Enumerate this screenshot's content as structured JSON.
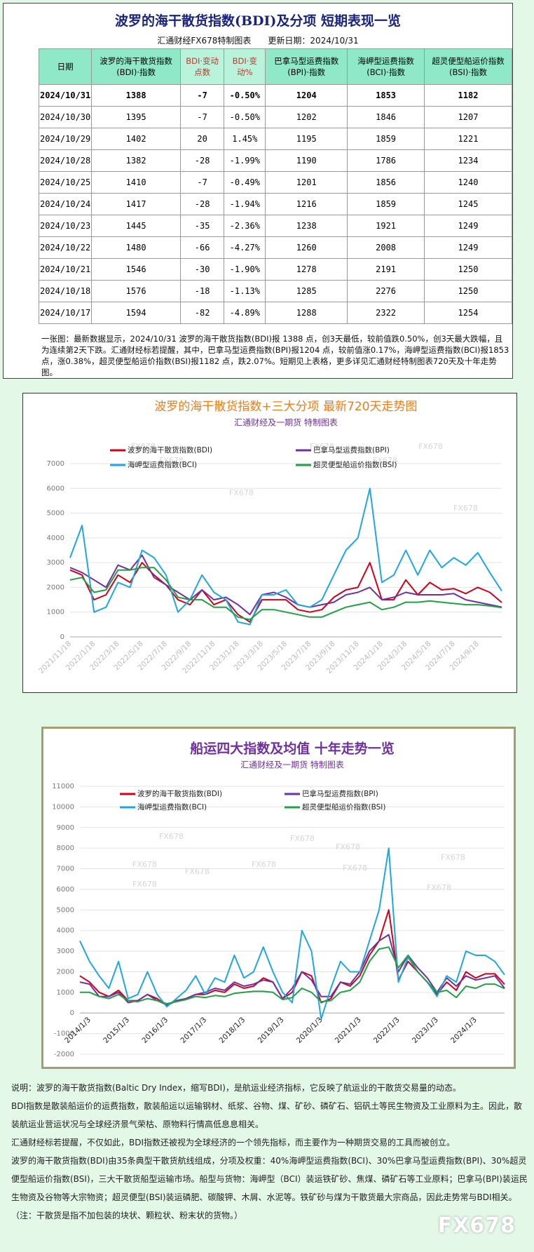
{
  "header": {
    "title": "波罗的海干散货指数(BDI)及分项  短期表现一览",
    "source": "汇通财经FX678特制图表",
    "updated": "更新日期：2024/10/31"
  },
  "table": {
    "columns": [
      "日期",
      "波罗的海干散货指数(BDI)·指数",
      "BDI·变动点数",
      "BDI·变动%",
      "巴拿马型运费指数(BPI)·指数",
      "海岬型运费指数(BCI)·指数",
      "超灵便型船运价指数(BSI)·指数"
    ],
    "rows": [
      [
        "2024/10/31",
        "1388",
        "-7",
        "-0.50%",
        "1204",
        "1853",
        "1182"
      ],
      [
        "2024/10/30",
        "1395",
        "-7",
        "-0.50%",
        "1202",
        "1846",
        "1207"
      ],
      [
        "2024/10/29",
        "1402",
        "20",
        "1.45%",
        "1195",
        "1859",
        "1221"
      ],
      [
        "2024/10/28",
        "1382",
        "-28",
        "-1.99%",
        "1190",
        "1786",
        "1234"
      ],
      [
        "2024/10/25",
        "1410",
        "-7",
        "-0.49%",
        "1201",
        "1856",
        "1240"
      ],
      [
        "2024/10/24",
        "1417",
        "-28",
        "-1.94%",
        "1216",
        "1859",
        "1245"
      ],
      [
        "2024/10/23",
        "1445",
        "-35",
        "-2.36%",
        "1238",
        "1921",
        "1249"
      ],
      [
        "2024/10/22",
        "1480",
        "-66",
        "-4.27%",
        "1260",
        "2008",
        "1249"
      ],
      [
        "2024/10/21",
        "1546",
        "-30",
        "-1.90%",
        "1278",
        "2191",
        "1250"
      ],
      [
        "2024/10/18",
        "1576",
        "-18",
        "-1.13%",
        "1285",
        "2276",
        "1250"
      ],
      [
        "2024/10/17",
        "1594",
        "-82",
        "-4.89%",
        "1288",
        "2322",
        "1254"
      ]
    ]
  },
  "summary": "一张图：最新数据显示，2024/10/31 波罗的海干散货指数(BDI)报 1388 点，创3天最低，较前值跌0.50%，创3天最大跌幅，且为连续第2天下跌。汇通财经标若提醒，其中，巴拿马型运费指数(BPI)报1204 点，较前值涨0.17%，海岬型运费指数(BCI)报1853 点，涨0.38%，超灵便型船运价指数(BSI)报1182 点，跌2.07%。短期见上表格，更多详见汇通财经特制图表720天及十年走势图。",
  "watermark": "FX678",
  "chart_data": [
    {
      "type": "line",
      "title": "波罗的海干散货指数+三大分项  最新720天走势图",
      "subtitle": "汇通财经及一期货  特制图表",
      "categories": [
        "2021/11/18",
        null,
        "2022/1/18",
        null,
        "2022/3/18",
        null,
        "2022/5/18",
        null,
        "2022/7/18",
        null,
        "2022/9/18",
        null,
        "2022/11/18",
        null,
        "2023/1/18",
        null,
        "2023/3/18",
        null,
        "2023/5/18",
        null,
        "2023/7/18",
        null,
        "2023/9/18",
        null,
        "2023/11/18",
        null,
        "2024/1/18",
        null,
        "2024/3/18",
        null,
        "2024/5/18",
        null,
        "2024/7/18",
        null,
        "2024/9/18",
        null,
        null
      ],
      "series": [
        {
          "name": "波罗的海干散货指数(BDI)",
          "color": "#d0021b",
          "values": [
            2700,
            2500,
            1500,
            1700,
            2500,
            2200,
            3000,
            2500,
            2100,
            1500,
            1300,
            1900,
            1300,
            1500,
            900,
            600,
            1500,
            1500,
            1500,
            1100,
            1000,
            1100,
            1600,
            1900,
            2000,
            3000,
            1500,
            1500,
            2300,
            1700,
            2200,
            1900,
            1950,
            1750,
            2000,
            1800,
            1388
          ]
        },
        {
          "name": "巴拿马型运费指数(BPI)",
          "color": "#7030a0",
          "values": [
            2800,
            2600,
            2300,
            2000,
            2900,
            2700,
            3300,
            2400,
            2100,
            1800,
            1500,
            1900,
            1500,
            1600,
            1300,
            900,
            1700,
            1800,
            1600,
            1300,
            1200,
            1300,
            1400,
            1700,
            1800,
            2000,
            1500,
            1600,
            1800,
            1700,
            1700,
            1700,
            1750,
            1500,
            1400,
            1300,
            1204
          ]
        },
        {
          "name": "海岬型运费指数(BCI)",
          "color": "#1ea7e1",
          "values": [
            3200,
            4500,
            1000,
            1200,
            2200,
            2000,
            3500,
            3200,
            2500,
            1000,
            1500,
            2500,
            1800,
            1500,
            600,
            500,
            1700,
            1700,
            1900,
            1300,
            1200,
            1500,
            2500,
            3500,
            4000,
            6000,
            2200,
            2500,
            3500,
            2500,
            3500,
            2800,
            3200,
            2900,
            3400,
            2600,
            1853
          ]
        },
        {
          "name": "超灵便型船运价指数(BSI)",
          "color": "#22a045",
          "values": [
            2300,
            2400,
            1800,
            1900,
            2700,
            2700,
            2800,
            2800,
            2300,
            1600,
            1500,
            1500,
            1200,
            1200,
            800,
            700,
            1100,
            1100,
            1000,
            900,
            800,
            800,
            1000,
            1200,
            1300,
            1400,
            1100,
            1200,
            1400,
            1400,
            1450,
            1400,
            1350,
            1300,
            1300,
            1250,
            1182
          ]
        }
      ],
      "ylim": [
        0,
        7000
      ],
      "yticks": [
        0,
        1000,
        2000,
        3000,
        4000,
        5000,
        6000,
        7000
      ],
      "grid": true
    },
    {
      "type": "line",
      "title": "船运四大指数及均值 十年走势一览",
      "subtitle": "汇通财经及一期货 特制图表",
      "categories": [
        null,
        "2014/1/3",
        null,
        null,
        null,
        "2015/1/3",
        null,
        null,
        null,
        "2016/1/3",
        null,
        null,
        null,
        "2017/1/3",
        null,
        null,
        null,
        "2018/1/3",
        null,
        null,
        null,
        "2019/1/3",
        null,
        null,
        null,
        "2020/1/3",
        null,
        null,
        null,
        "2021/1/3",
        null,
        null,
        null,
        "2022/1/3",
        null,
        null,
        null,
        "2023/1/3",
        null,
        null,
        null,
        "2024/1/3",
        null,
        null,
        null
      ],
      "series": [
        {
          "name": "波罗的海干散货指数(BDI)",
          "color": "#d0021b",
          "values": [
            1800,
            1500,
            1000,
            800,
            1100,
            600,
            600,
            900,
            700,
            350,
            600,
            700,
            900,
            900,
            1100,
            1000,
            1400,
            1200,
            1300,
            1700,
            1500,
            700,
            1000,
            2000,
            1800,
            500,
            700,
            1500,
            1300,
            1800,
            2800,
            3500,
            5000,
            1600,
            2500,
            2000,
            1500,
            900,
            1500,
            1100,
            2000,
            1700,
            1900,
            1900,
            1388
          ]
        },
        {
          "name": "巴拿马型运费指数(BPI)",
          "color": "#7030a0",
          "values": [
            1500,
            1400,
            800,
            800,
            1000,
            500,
            600,
            900,
            600,
            400,
            600,
            700,
            900,
            1000,
            1200,
            1100,
            1500,
            1300,
            1400,
            1600,
            1500,
            700,
            1200,
            2000,
            1600,
            800,
            800,
            1500,
            1400,
            2000,
            3000,
            3500,
            3800,
            2000,
            2800,
            2200,
            1700,
            1000,
            1700,
            1300,
            1800,
            1600,
            1700,
            1800,
            1204
          ]
        },
        {
          "name": "海岬型运费指数(BCI)",
          "color": "#1ea7e1",
          "values": [
            3500,
            2500,
            1800,
            1200,
            2500,
            700,
            900,
            2000,
            900,
            300,
            700,
            1100,
            1800,
            900,
            1700,
            1500,
            2800,
            1700,
            2000,
            3200,
            2000,
            1000,
            500,
            4000,
            3000,
            -300,
            1200,
            2500,
            2000,
            2000,
            3500,
            5000,
            8000,
            1500,
            2700,
            2000,
            1500,
            800,
            1800,
            1500,
            3000,
            2800,
            2800,
            2500,
            1853
          ]
        },
        {
          "name": "超灵便型船运价指数(BSI)",
          "color": "#22a045",
          "values": [
            1000,
            1000,
            800,
            700,
            900,
            600,
            550,
            700,
            600,
            450,
            550,
            650,
            800,
            750,
            850,
            800,
            950,
            1000,
            1050,
            1050,
            1000,
            650,
            750,
            1200,
            1000,
            550,
            600,
            1000,
            1100,
            1500,
            2500,
            3100,
            3200,
            2200,
            2800,
            2000,
            1500,
            1000,
            1100,
            750,
            1300,
            1200,
            1400,
            1400,
            1182
          ]
        }
      ],
      "ylim": [
        -2000,
        11000
      ],
      "yticks": [
        -2000,
        -1000,
        0,
        1000,
        2000,
        3000,
        4000,
        5000,
        6000,
        7000,
        8000,
        9000,
        10000,
        11000
      ],
      "grid": true
    }
  ],
  "notes": [
    "说明：波罗的海干散货指数(Baltic Dry Index，缩写BDI)，是航运业经济指标，它反映了航运业的干散货交易量的动态。",
    "BDI指数是散装船运价的运费指数，散装船运以运输钢材、纸浆、谷物、煤、矿砂、磷矿石、铝矾土等民生物资及工业原料为主。因此，散装航运业营运状况与全球经济景气荣枯、原物料行情高低息息相关。",
    "汇通财经标若提醒，不仅如此，BDI指数还被视为全球经济的一个领先指标，而主要作为一种期货交易的工具而被创立。",
    "波罗的海干散货指数(BDI)由35条典型干散货航线组成，分项及权重：40%海岬型运费指数(BCI)、30%巴拿马型运费指数(BPI)、30%超灵便型船运价指数(BSI)，三大干散货船型运输市场。船型与货物：海岬型（BCI）装运铁矿砂、焦煤、磷矿石等工业原料；巴拿马(BPI)装运民生物资及谷物等大宗物资；超灵便型(BSI)装运磷肥、碳酸钾、木屑、水泥等。铁矿砂与煤为干散货最大宗商品，因此走势常与BDI相关。（注：干散货是指不加包装的块状、颗粒状、粉末状的货物。）"
  ]
}
